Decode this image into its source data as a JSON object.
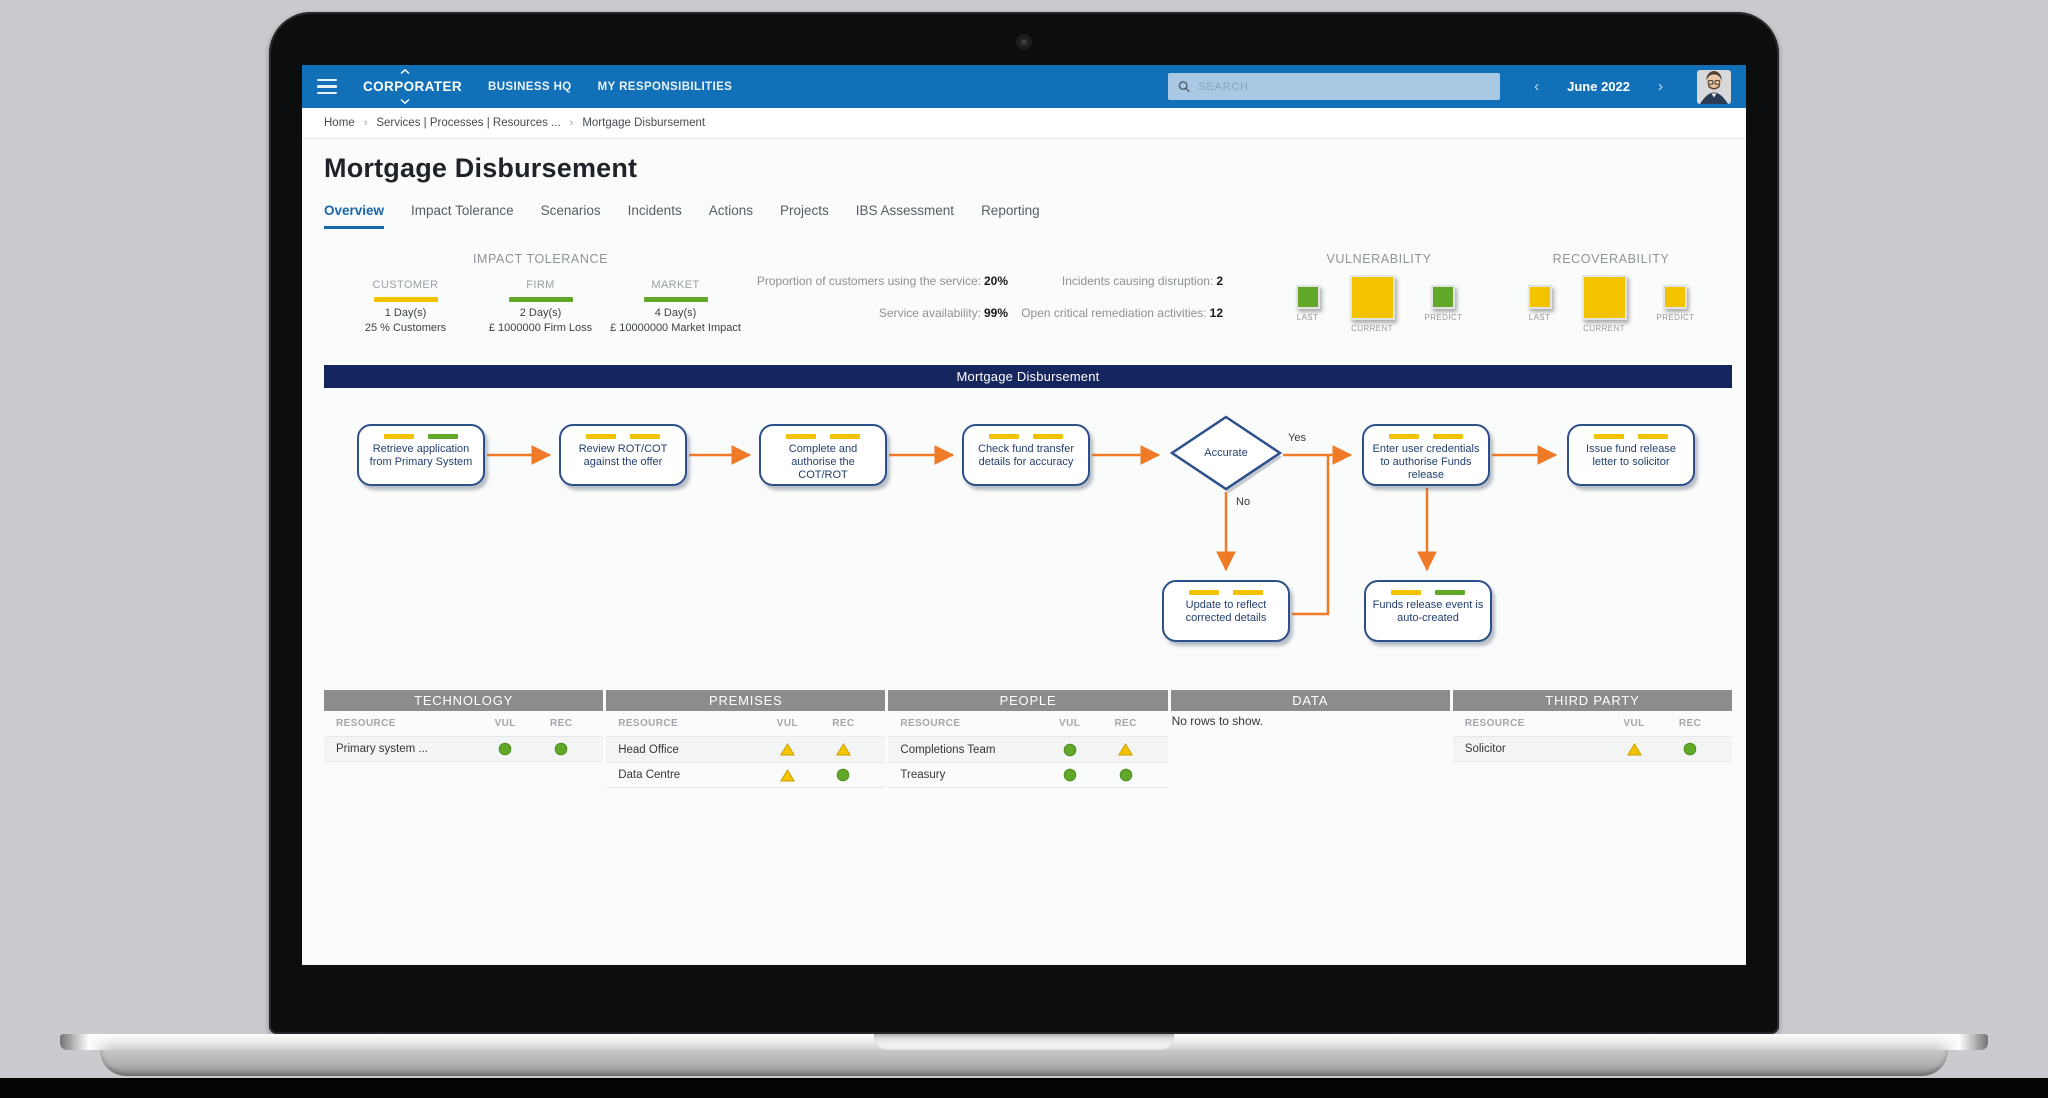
{
  "colors": {
    "yellow": "#f3c300",
    "green": "#61a828",
    "nav_blue": "#1170b8",
    "banner_navy": "#15265e",
    "arrow_orange": "#ef7b28"
  },
  "nav": {
    "brand": "CORPORATER",
    "menu": [
      {
        "label": "BUSINESS HQ"
      },
      {
        "label": "MY RESPONSIBILITIES"
      }
    ],
    "search": {
      "placeholder": "SEARCH"
    },
    "period": {
      "prev": "‹",
      "label": "June 2022",
      "next": "›"
    }
  },
  "breadcrumb": {
    "separator": "›",
    "items": [
      {
        "label": "Home"
      },
      {
        "label": "Services | Processes | Resources ..."
      },
      {
        "label": "Mortgage Disbursement"
      }
    ]
  },
  "page": {
    "title": "Mortgage Disbursement"
  },
  "tabs": [
    {
      "label": "Overview"
    },
    {
      "label": "Impact Tolerance"
    },
    {
      "label": "Scenarios"
    },
    {
      "label": "Incidents"
    },
    {
      "label": "Actions"
    },
    {
      "label": "Projects"
    },
    {
      "label": "IBS Assessment"
    },
    {
      "label": "Reporting"
    }
  ],
  "impact_tolerance": {
    "title": "IMPACT TOLERANCE",
    "columns": [
      {
        "label": "CUSTOMER",
        "bar": "yellow",
        "duration": "1 Day(s)",
        "detail": "25 % Customers"
      },
      {
        "label": "FIRM",
        "bar": "green",
        "duration": "2 Day(s)",
        "detail": "£ 1000000 Firm Loss"
      },
      {
        "label": "MARKET",
        "bar": "green",
        "duration": "4 Day(s)",
        "detail": "£ 10000000 Market Impact"
      }
    ]
  },
  "stats": {
    "left": [
      {
        "label": "Proportion of customers using the service:",
        "value": "20%"
      },
      {
        "label": "Service availability:",
        "value": "99%"
      }
    ],
    "right": [
      {
        "label": "Incidents causing disruption:",
        "value": "2"
      },
      {
        "label": "Open critical remediation activities:",
        "value": "12"
      }
    ]
  },
  "vulnerability": {
    "title": "VULNERABILITY",
    "squares": [
      {
        "label": "LAST",
        "color": "green",
        "size": "small"
      },
      {
        "label": "CURRENT",
        "color": "yellow",
        "size": "large"
      },
      {
        "label": "PREDICT",
        "color": "green",
        "size": "small"
      }
    ]
  },
  "recoverability": {
    "title": "RECOVERABILITY",
    "squares": [
      {
        "label": "LAST",
        "color": "yellow",
        "size": "small"
      },
      {
        "label": "CURRENT",
        "color": "yellow",
        "size": "large"
      },
      {
        "label": "PREDICT",
        "color": "yellow",
        "size": "small"
      }
    ]
  },
  "banner": {
    "title": "Mortgage Disbursement"
  },
  "flowchart": {
    "nodes": [
      {
        "text": "Retrieve application from Primary System",
        "bars": [
          "yellow",
          "green"
        ]
      },
      {
        "text": "Review ROT/COT against the offer",
        "bars": [
          "yellow",
          "yellow"
        ]
      },
      {
        "text": "Complete and authorise the COT/ROT",
        "bars": [
          "yellow",
          "yellow"
        ]
      },
      {
        "text": "Check fund transfer details for accuracy",
        "bars": [
          "yellow",
          "yellow"
        ]
      },
      {
        "text": "Enter user credentials to authorise Funds release",
        "bars": [
          "yellow",
          "yellow"
        ]
      },
      {
        "text": "Issue fund release letter to solicitor",
        "bars": [
          "yellow",
          "yellow"
        ]
      },
      {
        "text": "Update to reflect corrected details",
        "bars": [
          "yellow",
          "yellow"
        ]
      },
      {
        "text": "Funds release event is auto-created",
        "bars": [
          "yellow",
          "green"
        ]
      }
    ],
    "decision": {
      "label": "Accurate",
      "yes_label": "Yes",
      "no_label": "No"
    }
  },
  "resource_tables": [
    {
      "title": "TECHNOLOGY",
      "columns": [
        "RESOURCE",
        "VUL",
        "REC"
      ],
      "rows": [
        {
          "resource": "Primary system ...",
          "vul": "green-circle",
          "rec": "green-circle"
        }
      ]
    },
    {
      "title": "PREMISES",
      "columns": [
        "RESOURCE",
        "VUL",
        "REC"
      ],
      "rows": [
        {
          "resource": "Head Office",
          "vul": "yellow-triangle",
          "rec": "yellow-triangle"
        },
        {
          "resource": "Data Centre",
          "vul": "yellow-triangle",
          "rec": "green-circle"
        }
      ]
    },
    {
      "title": "PEOPLE",
      "columns": [
        "RESOURCE",
        "VUL",
        "REC"
      ],
      "rows": [
        {
          "resource": "Completions Team",
          "vul": "green-circle",
          "rec": "yellow-triangle"
        },
        {
          "resource": "Treasury",
          "vul": "green-circle",
          "rec": "green-circle"
        }
      ]
    },
    {
      "title": "DATA",
      "columns": [],
      "rows": [],
      "empty_text": "No rows to show."
    },
    {
      "title": "THIRD PARTY",
      "columns": [
        "RESOURCE",
        "VUL",
        "REC"
      ],
      "rows": [
        {
          "resource": "Solicitor",
          "vul": "yellow-triangle",
          "rec": "green-circle"
        }
      ]
    }
  ]
}
